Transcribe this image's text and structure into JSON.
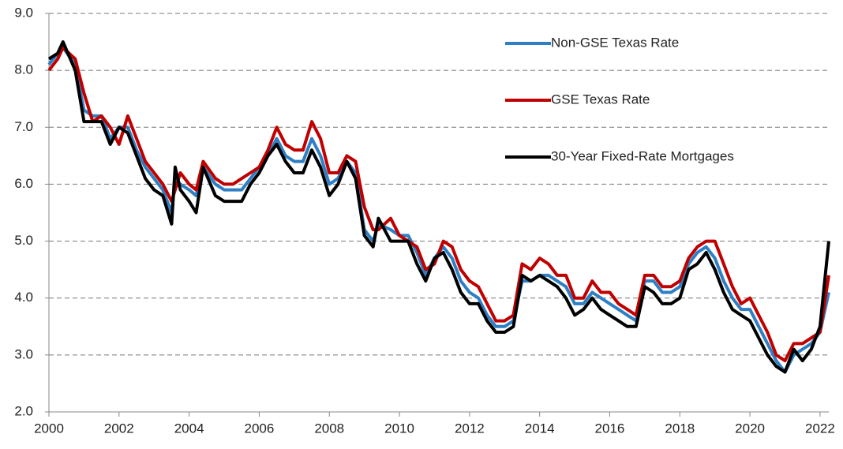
{
  "chart_data": {
    "type": "line",
    "x": [
      2000,
      2000.25,
      2000.4,
      2000.75,
      2001,
      2001.25,
      2001.5,
      2001.75,
      2002,
      2002.25,
      2002.5,
      2002.75,
      2003,
      2003.25,
      2003.5,
      2003.6,
      2003.75,
      2004,
      2004.2,
      2004.4,
      2004.75,
      2005,
      2005.25,
      2005.5,
      2005.75,
      2006,
      2006.25,
      2006.5,
      2006.75,
      2007,
      2007.25,
      2007.5,
      2007.75,
      2008,
      2008.25,
      2008.5,
      2008.75,
      2009,
      2009.25,
      2009.4,
      2009.75,
      2010,
      2010.25,
      2010.5,
      2010.75,
      2011,
      2011.25,
      2011.5,
      2011.75,
      2012,
      2012.25,
      2012.5,
      2012.75,
      2013,
      2013.25,
      2013.5,
      2013.75,
      2014,
      2014.25,
      2014.5,
      2014.75,
      2015,
      2015.25,
      2015.5,
      2015.75,
      2016,
      2016.25,
      2016.5,
      2016.75,
      2017,
      2017.25,
      2017.5,
      2017.75,
      2018,
      2018.25,
      2018.5,
      2018.75,
      2019,
      2019.25,
      2019.5,
      2019.75,
      2020,
      2020.25,
      2020.5,
      2020.75,
      2021,
      2021.25,
      2021.5,
      2021.75,
      2022,
      2022.25
    ],
    "series": [
      {
        "name": "Non-GSE Texas Rate",
        "color": "#2e7fc4",
        "values": [
          8.1,
          8.3,
          8.4,
          8.1,
          7.3,
          7.2,
          7.2,
          6.8,
          7.0,
          7.0,
          6.6,
          6.3,
          6.1,
          5.9,
          5.5,
          6.1,
          6.0,
          5.9,
          5.8,
          6.3,
          6.0,
          5.9,
          5.9,
          5.9,
          6.1,
          6.3,
          6.5,
          6.8,
          6.5,
          6.4,
          6.4,
          6.8,
          6.5,
          6.0,
          6.1,
          6.4,
          6.2,
          5.2,
          5.0,
          5.3,
          5.2,
          5.1,
          5.1,
          4.8,
          4.4,
          4.7,
          4.9,
          4.7,
          4.3,
          4.1,
          4.0,
          3.7,
          3.5,
          3.5,
          3.6,
          4.3,
          4.3,
          4.4,
          4.4,
          4.3,
          4.2,
          3.9,
          3.9,
          4.1,
          4.0,
          3.9,
          3.8,
          3.7,
          3.6,
          4.3,
          4.3,
          4.1,
          4.1,
          4.2,
          4.6,
          4.8,
          4.9,
          4.7,
          4.3,
          4.0,
          3.8,
          3.8,
          3.5,
          3.2,
          2.9,
          2.7,
          3.0,
          3.1,
          3.2,
          3.4,
          4.1
        ]
      },
      {
        "name": "GSE Texas Rate",
        "color": "#c00000",
        "values": [
          8.0,
          8.2,
          8.4,
          8.2,
          7.6,
          7.1,
          7.2,
          7.0,
          6.7,
          7.2,
          6.8,
          6.4,
          6.2,
          6.0,
          5.7,
          5.9,
          6.2,
          6.0,
          5.9,
          6.4,
          6.1,
          6.0,
          6.0,
          6.1,
          6.2,
          6.3,
          6.6,
          7.0,
          6.7,
          6.6,
          6.6,
          7.1,
          6.8,
          6.2,
          6.2,
          6.5,
          6.4,
          5.6,
          5.2,
          5.2,
          5.4,
          5.1,
          5.0,
          4.9,
          4.5,
          4.6,
          5.0,
          4.9,
          4.5,
          4.3,
          4.2,
          3.9,
          3.6,
          3.6,
          3.7,
          4.6,
          4.5,
          4.7,
          4.6,
          4.4,
          4.4,
          4.0,
          4.0,
          4.3,
          4.1,
          4.1,
          3.9,
          3.8,
          3.7,
          4.4,
          4.4,
          4.2,
          4.2,
          4.3,
          4.7,
          4.9,
          5.0,
          5.0,
          4.6,
          4.2,
          3.9,
          4.0,
          3.7,
          3.4,
          3.0,
          2.9,
          3.2,
          3.2,
          3.3,
          3.4,
          4.4
        ]
      },
      {
        "name": "30-Year Fixed-Rate Mortgages",
        "color": "#000000",
        "values": [
          8.2,
          8.3,
          8.5,
          8.0,
          7.1,
          7.1,
          7.1,
          6.7,
          7.0,
          6.9,
          6.5,
          6.1,
          5.9,
          5.8,
          5.3,
          6.3,
          5.9,
          5.7,
          5.5,
          6.3,
          5.8,
          5.7,
          5.7,
          5.7,
          6.0,
          6.2,
          6.5,
          6.7,
          6.4,
          6.2,
          6.2,
          6.6,
          6.3,
          5.8,
          6.0,
          6.4,
          6.1,
          5.1,
          4.9,
          5.4,
          5.0,
          5.0,
          5.0,
          4.6,
          4.3,
          4.7,
          4.8,
          4.5,
          4.1,
          3.9,
          3.9,
          3.6,
          3.4,
          3.4,
          3.5,
          4.4,
          4.3,
          4.4,
          4.3,
          4.2,
          4.0,
          3.7,
          3.8,
          4.0,
          3.8,
          3.7,
          3.6,
          3.5,
          3.5,
          4.2,
          4.1,
          3.9,
          3.9,
          4.0,
          4.5,
          4.6,
          4.8,
          4.5,
          4.1,
          3.8,
          3.7,
          3.6,
          3.3,
          3.0,
          2.8,
          2.7,
          3.1,
          2.9,
          3.1,
          3.5,
          5.0
        ]
      }
    ],
    "xlim": [
      2000,
      2022.25
    ],
    "xticks": [
      2000,
      2002,
      2004,
      2006,
      2008,
      2010,
      2012,
      2014,
      2016,
      2018,
      2020,
      2022
    ],
    "ylim": [
      2,
      9
    ],
    "yticks": [
      {
        "value": 2,
        "label": "2.0"
      },
      {
        "value": 3,
        "label": "3.0"
      },
      {
        "value": 4,
        "label": "4.0"
      },
      {
        "value": 5,
        "label": "5.0"
      },
      {
        "value": 6,
        "label": "6.0"
      },
      {
        "value": 7,
        "label": "7.0"
      },
      {
        "value": 8,
        "label": "8.0"
      },
      {
        "value": 9,
        "label": "9.0"
      }
    ],
    "grid": true,
    "legend": "upper right"
  }
}
